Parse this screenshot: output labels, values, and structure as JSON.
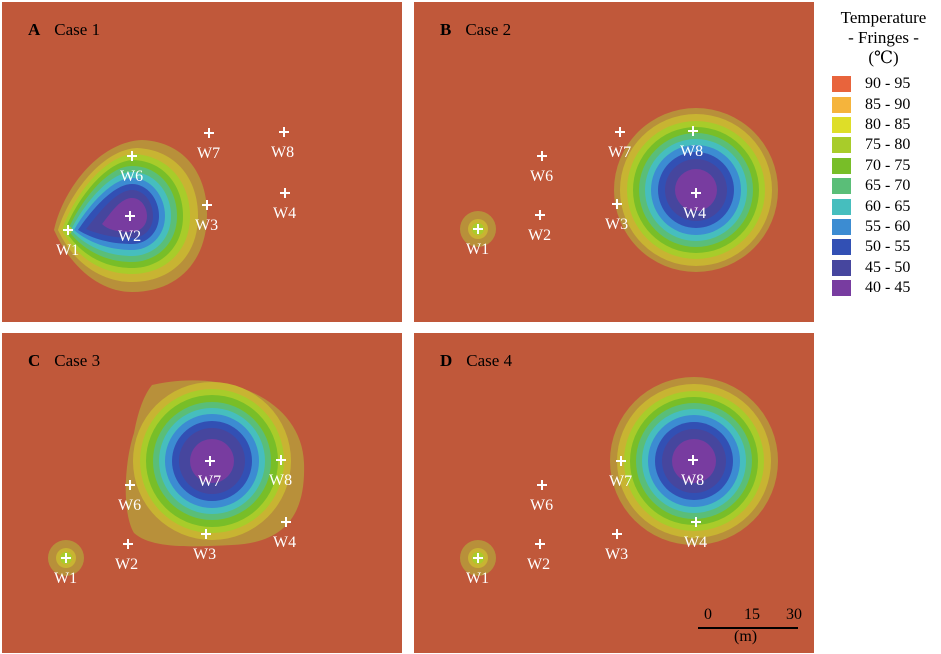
{
  "panels": [
    {
      "id": "A",
      "letter": "A",
      "title": "Case 1"
    },
    {
      "id": "B",
      "letter": "B",
      "title": "Case 2"
    },
    {
      "id": "C",
      "letter": "C",
      "title": "Case 3"
    },
    {
      "id": "D",
      "letter": "D",
      "title": "Case 4"
    }
  ],
  "wells": {
    "W1": "W1",
    "W2": "W2",
    "W3": "W3",
    "W4": "W4",
    "W6": "W6",
    "W7": "W7",
    "W8": "W8"
  },
  "legend": {
    "title_lines": [
      "Temperature",
      "- Fringes -",
      "(℃)"
    ],
    "items": [
      {
        "label": "90 - 95",
        "color": "#e8643c"
      },
      {
        "label": "85 - 90",
        "color": "#f5b43c"
      },
      {
        "label": "80 - 85",
        "color": "#dede28"
      },
      {
        "label": "75 - 80",
        "color": "#a8cc2a"
      },
      {
        "label": "70 - 75",
        "color": "#78be28"
      },
      {
        "label": "65 - 70",
        "color": "#5abe78"
      },
      {
        "label": "60 - 65",
        "color": "#46bebe"
      },
      {
        "label": "55 - 60",
        "color": "#3c8cd2"
      },
      {
        "label": "50 - 55",
        "color": "#3250b4"
      },
      {
        "label": "45 - 50",
        "color": "#46469e"
      },
      {
        "label": "40 - 45",
        "color": "#783ca0"
      }
    ]
  },
  "scale_bar": {
    "ticks": [
      "0",
      "15",
      "30"
    ],
    "unit": "(m)"
  }
}
